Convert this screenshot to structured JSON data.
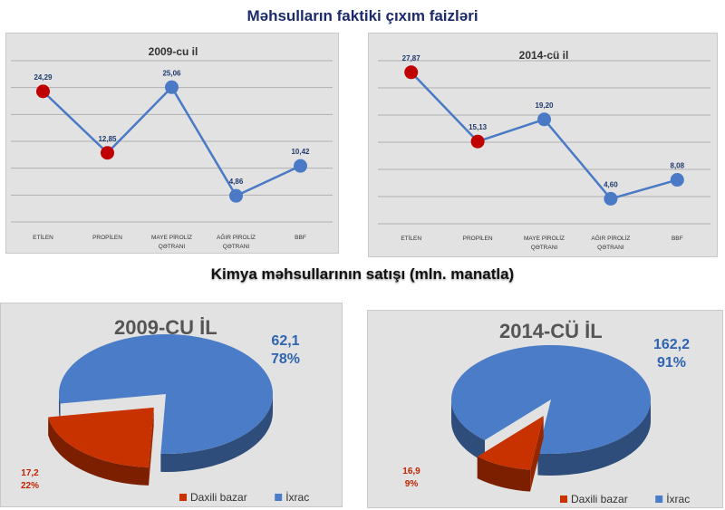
{
  "titles": {
    "top": "Məhsulların faktiki çıxım faizləri",
    "bottom": "Kimya  məhsullarının satışı (mln. manatla)"
  },
  "chart_data": [
    {
      "type": "line",
      "title": "2009-cu il",
      "categories": [
        "ETİLEN",
        "PROPİLEN",
        [
          "MAYE PİROLİZ",
          "QƏTRANI"
        ],
        [
          "AĞIR PİROLİZ",
          "QƏTRANI"
        ],
        "BBF"
      ],
      "values": [
        24.29,
        12.85,
        25.06,
        4.86,
        10.42
      ],
      "value_labels": [
        "24,29",
        "12,85",
        "25,06",
        "4,86",
        "10,42"
      ],
      "highlighted_points": [
        0,
        1
      ],
      "ylim": [
        0,
        30
      ],
      "grid": true,
      "colors": {
        "line": "#4a79c5",
        "point": "#4a79c5",
        "highlight": "#c00000"
      }
    },
    {
      "type": "line",
      "title": "2014-cü il",
      "categories": [
        "ETİLEN",
        "PROPİLEN",
        [
          "MAYE PİROLİZ",
          "QƏTRANI"
        ],
        [
          "AĞIR PİROLİZ",
          "QƏTRANI"
        ],
        "BBF"
      ],
      "values": [
        27.87,
        15.13,
        19.2,
        4.6,
        8.08
      ],
      "value_labels": [
        "27,87",
        "15,13",
        "19,20",
        "4,60",
        "8,08"
      ],
      "highlighted_points": [
        0,
        1
      ],
      "ylim": [
        0,
        30
      ],
      "grid": true,
      "colors": {
        "line": "#4a79c5",
        "point": "#4a79c5",
        "highlight": "#c00000"
      }
    },
    {
      "type": "pie",
      "title": "2009-CU İL",
      "slices": [
        {
          "name": "Daxili bazar",
          "value": 17.2,
          "percent": 22,
          "value_label": "17,2",
          "percent_label": "22%",
          "color": "#c83200",
          "exploded": true
        },
        {
          "name": "İxrac",
          "value": 62.1,
          "percent": 78,
          "value_label": "62,1",
          "percent_label": "78%",
          "color": "#4a7cc7",
          "exploded": false
        }
      ],
      "legend": "bottom-right"
    },
    {
      "type": "pie",
      "title": "2014-CÜ İL",
      "slices": [
        {
          "name": "Daxili bazar",
          "value": 16.9,
          "percent": 9,
          "value_label": "16,9",
          "percent_label": "9%",
          "color": "#c83200",
          "exploded": true
        },
        {
          "name": "İxrac",
          "value": 162.2,
          "percent": 91,
          "value_label": "162,2",
          "percent_label": "91%",
          "color": "#4a7cc7",
          "exploded": false
        }
      ],
      "legend": "bottom-right"
    }
  ]
}
